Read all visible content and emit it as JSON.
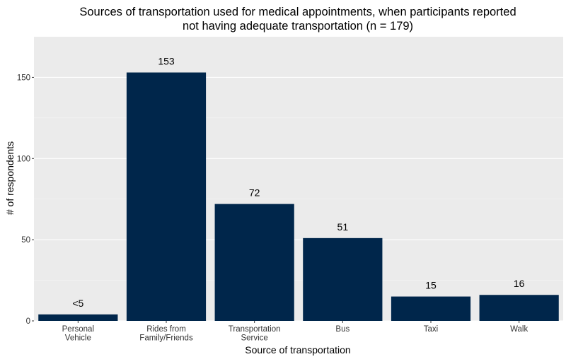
{
  "chart_data": {
    "type": "bar",
    "title_line1": "Sources of transportation used for medical appointments, when participants reported",
    "title_line2": "not having adequate transportation (n = 179)",
    "xlabel": "Source of transportation",
    "ylabel": "# of respondents",
    "categories": [
      [
        "Personal",
        "Vehicle"
      ],
      [
        "Rides from",
        "Family/Friends"
      ],
      [
        "Transportation",
        "Service"
      ],
      [
        "Bus"
      ],
      [
        "Taxi"
      ],
      [
        "Walk"
      ]
    ],
    "values": [
      4,
      153,
      72,
      51,
      15,
      16
    ],
    "data_labels": [
      "<5",
      "153",
      "72",
      "51",
      "15",
      "16"
    ],
    "ylim": [
      0,
      175
    ],
    "yticks": [
      0,
      50,
      100,
      150
    ],
    "grid": true,
    "colors": {
      "bar": "#00264B",
      "panel": "#EBEBEB",
      "grid": "#FFFFFF",
      "text": "#000000",
      "axis_text": "#333333"
    }
  }
}
